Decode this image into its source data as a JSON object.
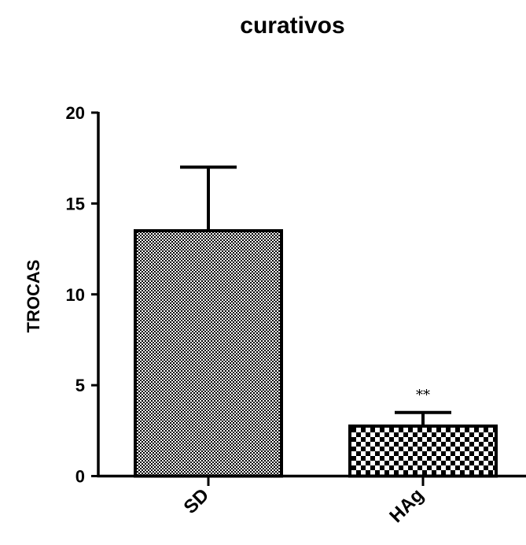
{
  "chart_data": {
    "type": "bar",
    "title": "curativos",
    "xlabel": "",
    "ylabel": "TROCAS",
    "categories": [
      "SD",
      "HAg"
    ],
    "values": [
      13.5,
      2.75
    ],
    "error_upper": [
      17.0,
      3.5
    ],
    "annotations": [
      "",
      "**"
    ],
    "ylim": [
      0,
      20
    ],
    "yticks": [
      0,
      5,
      10,
      15,
      20
    ],
    "grid": false,
    "legend": "none",
    "fill_patterns": [
      "fine-checker",
      "coarse-checker"
    ],
    "colors": {
      "bar_stroke": "#000000",
      "bar_fill": "#ffffff",
      "axis": "#000000"
    }
  }
}
